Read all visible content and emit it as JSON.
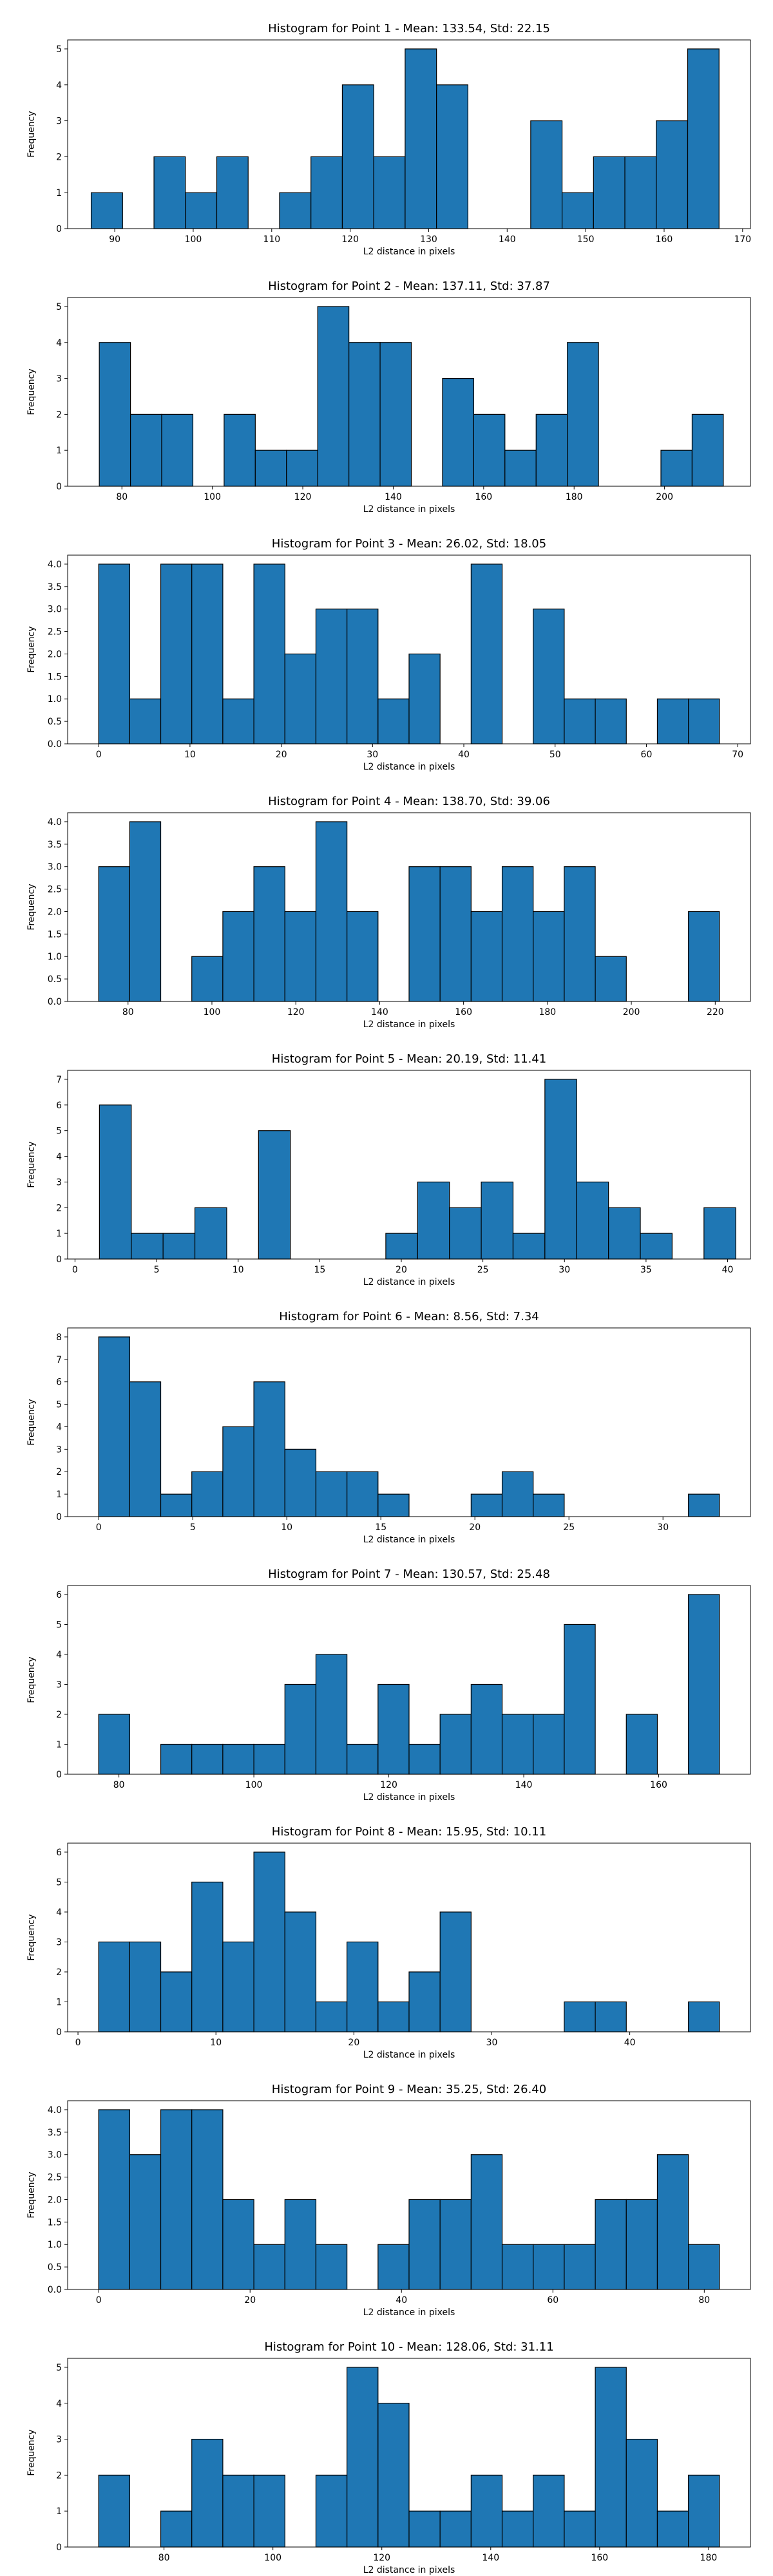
{
  "chart_data": [
    {
      "type": "bar",
      "title": "Histogram for Point 1 - Mean: 133.54, Std: 22.15",
      "xlabel": "L2 distance in pixels",
      "ylabel": "Frequency",
      "bin_start": 87,
      "bin_width": 4,
      "values": [
        1,
        0,
        2,
        1,
        2,
        0,
        1,
        2,
        4,
        2,
        5,
        4,
        0,
        0,
        3,
        1,
        2,
        2,
        3,
        5
      ],
      "xlim": [
        84,
        171
      ],
      "ylim": [
        0,
        5.25
      ],
      "xticks": [
        90,
        100,
        110,
        120,
        130,
        140,
        150,
        160,
        170
      ],
      "yticks": [
        0,
        1,
        2,
        3,
        4,
        5
      ],
      "bar_color": "#1f77b4"
    },
    {
      "type": "bar",
      "title": "Histogram for Point 2 - Mean: 137.11, Std: 37.87",
      "xlabel": "L2 distance in pixels",
      "ylabel": "Frequency",
      "bin_start": 75,
      "bin_width": 6.9,
      "values": [
        4,
        2,
        2,
        0,
        2,
        1,
        1,
        5,
        4,
        4,
        0,
        3,
        2,
        1,
        2,
        4,
        0,
        0,
        1,
        2
      ],
      "xlim": [
        68,
        219
      ],
      "ylim": [
        0,
        5.25
      ],
      "xticks": [
        80,
        100,
        120,
        140,
        160,
        180,
        200
      ],
      "yticks": [
        0,
        1,
        2,
        3,
        4,
        5
      ],
      "bar_color": "#1f77b4"
    },
    {
      "type": "bar",
      "title": "Histogram for Point 3 - Mean: 26.02, Std: 18.05",
      "xlabel": "L2 distance in pixels",
      "ylabel": "Frequency",
      "bin_start": 0,
      "bin_width": 3.4,
      "values": [
        4,
        1,
        4,
        4,
        1,
        4,
        2,
        3,
        3,
        1,
        2,
        0,
        4,
        0,
        3,
        1,
        1,
        0,
        1,
        1
      ],
      "xlim": [
        -3.4,
        71.4
      ],
      "ylim": [
        0,
        4.2
      ],
      "xticks": [
        0,
        10,
        20,
        30,
        40,
        50,
        60,
        70
      ],
      "yticks": [
        0.0,
        0.5,
        1.0,
        1.5,
        2.0,
        2.5,
        3.0,
        3.5,
        4.0
      ],
      "ytick_decimals": 1,
      "bar_color": "#1f77b4"
    },
    {
      "type": "bar",
      "title": "Histogram for Point 4 - Mean: 138.70, Std: 39.06",
      "xlabel": "L2 distance in pixels",
      "ylabel": "Frequency",
      "bin_start": 73,
      "bin_width": 7.4,
      "values": [
        3,
        4,
        0,
        1,
        2,
        3,
        2,
        4,
        2,
        0,
        3,
        3,
        2,
        3,
        2,
        3,
        1,
        0,
        0,
        2
      ],
      "xlim": [
        65.6,
        228.4
      ],
      "ylim": [
        0,
        4.2
      ],
      "xticks": [
        80,
        100,
        120,
        140,
        160,
        180,
        200,
        220
      ],
      "yticks": [
        0.0,
        0.5,
        1.0,
        1.5,
        2.0,
        2.5,
        3.0,
        3.5,
        4.0
      ],
      "ytick_decimals": 1,
      "bar_color": "#1f77b4"
    },
    {
      "type": "bar",
      "title": "Histogram for Point 5 - Mean: 20.19, Std: 11.41",
      "xlabel": "L2 distance in pixels",
      "ylabel": "Frequency",
      "bin_start": 1.5,
      "bin_width": 1.95,
      "values": [
        6,
        1,
        1,
        2,
        0,
        5,
        0,
        0,
        0,
        1,
        3,
        2,
        3,
        1,
        7,
        3,
        2,
        1,
        0,
        2
      ],
      "xlim": [
        -0.45,
        41.4
      ],
      "ylim": [
        0,
        7.35
      ],
      "xticks": [
        0,
        5,
        10,
        15,
        20,
        25,
        30,
        35,
        40
      ],
      "yticks": [
        0,
        1,
        2,
        3,
        4,
        5,
        6,
        7
      ],
      "bar_color": "#1f77b4"
    },
    {
      "type": "bar",
      "title": "Histogram for Point 6 - Mean: 8.56, Std: 7.34",
      "xlabel": "L2 distance in pixels",
      "ylabel": "Frequency",
      "bin_start": 0,
      "bin_width": 1.65,
      "values": [
        8,
        6,
        1,
        2,
        4,
        6,
        3,
        2,
        2,
        1,
        0,
        0,
        1,
        2,
        1,
        0,
        0,
        0,
        0,
        1
      ],
      "xlim": [
        -1.65,
        34.65
      ],
      "ylim": [
        0,
        8.4
      ],
      "xticks": [
        0,
        5,
        10,
        15,
        20,
        25,
        30
      ],
      "yticks": [
        0,
        1,
        2,
        3,
        4,
        5,
        6,
        7,
        8
      ],
      "bar_color": "#1f77b4"
    },
    {
      "type": "bar",
      "title": "Histogram for Point 7 - Mean: 130.57, Std: 25.48",
      "xlabel": "L2 distance in pixels",
      "ylabel": "Frequency",
      "bin_start": 77,
      "bin_width": 4.6,
      "values": [
        2,
        0,
        1,
        1,
        1,
        1,
        3,
        4,
        1,
        3,
        1,
        2,
        3,
        2,
        2,
        5,
        0,
        2,
        0,
        6
      ],
      "xlim": [
        72.4,
        173.6
      ],
      "ylim": [
        0,
        6.3
      ],
      "xticks": [
        80,
        100,
        120,
        140,
        160
      ],
      "yticks": [
        0,
        1,
        2,
        3,
        4,
        5,
        6
      ],
      "bar_color": "#1f77b4"
    },
    {
      "type": "bar",
      "title": "Histogram for Point 8 - Mean: 15.95, Std: 10.11",
      "xlabel": "L2 distance in pixels",
      "ylabel": "Frequency",
      "bin_start": 1.5,
      "bin_width": 2.25,
      "values": [
        3,
        3,
        2,
        5,
        3,
        6,
        4,
        1,
        3,
        1,
        2,
        4,
        0,
        0,
        0,
        1,
        1,
        0,
        0,
        1
      ],
      "xlim": [
        -0.75,
        48.75
      ],
      "ylim": [
        0,
        6.3
      ],
      "xticks": [
        0,
        10,
        20,
        30,
        40
      ],
      "yticks": [
        0,
        1,
        2,
        3,
        4,
        5,
        6
      ],
      "bar_color": "#1f77b4"
    },
    {
      "type": "bar",
      "title": "Histogram for Point 9 - Mean: 35.25, Std: 26.40",
      "xlabel": "L2 distance in pixels",
      "ylabel": "Frequency",
      "bin_start": 0,
      "bin_width": 4.1,
      "values": [
        4,
        3,
        4,
        4,
        2,
        1,
        2,
        1,
        0,
        1,
        2,
        2,
        3,
        1,
        1,
        1,
        2,
        2,
        3,
        1
      ],
      "xlim": [
        -4.1,
        86.1
      ],
      "ylim": [
        0,
        4.2
      ],
      "xticks": [
        0,
        20,
        40,
        60,
        80
      ],
      "yticks": [
        0.0,
        0.5,
        1.0,
        1.5,
        2.0,
        2.5,
        3.0,
        3.5,
        4.0
      ],
      "ytick_decimals": 1,
      "bar_color": "#1f77b4"
    },
    {
      "type": "bar",
      "title": "Histogram for Point 10 - Mean: 128.06, Std: 31.11",
      "xlabel": "L2 distance in pixels",
      "ylabel": "Frequency",
      "bin_start": 68,
      "bin_width": 5.7,
      "values": [
        2,
        0,
        1,
        3,
        2,
        2,
        0,
        2,
        5,
        4,
        1,
        1,
        2,
        1,
        2,
        1,
        5,
        3,
        1,
        2
      ],
      "xlim": [
        62.3,
        187.7
      ],
      "ylim": [
        0,
        5.25
      ],
      "xticks": [
        80,
        100,
        120,
        140,
        160,
        180
      ],
      "yticks": [
        0,
        1,
        2,
        3,
        4,
        5
      ],
      "bar_color": "#1f77b4"
    }
  ]
}
